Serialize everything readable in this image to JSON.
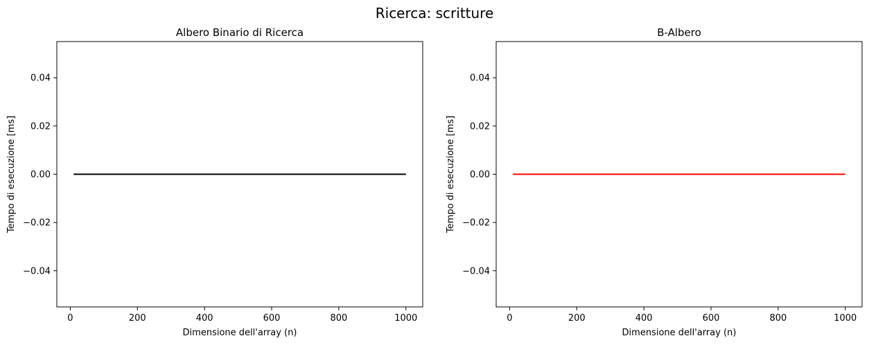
{
  "figure": {
    "suptitle": "Ricerca: scritture"
  },
  "chart_data": [
    {
      "type": "line",
      "title": "Albero Binario di Ricerca",
      "xlabel": "Dimensione dell'array (n)",
      "ylabel": "Tempo di esecuzione [ms]",
      "xlim": [
        -40,
        1050
      ],
      "ylim": [
        -0.055,
        0.055
      ],
      "xticks": [
        0,
        200,
        400,
        600,
        800,
        1000
      ],
      "xtick_labels": [
        "0",
        "200",
        "400",
        "600",
        "800",
        "1000"
      ],
      "yticks": [
        -0.04,
        -0.02,
        0.0,
        0.02,
        0.04
      ],
      "ytick_labels": [
        "−0.04",
        "−0.02",
        "0.00",
        "0.02",
        "0.04"
      ],
      "grid": false,
      "series": [
        {
          "color": "#000000",
          "x": [
            10,
            1000
          ],
          "y": [
            0.0,
            0.0
          ]
        }
      ]
    },
    {
      "type": "line",
      "title": "B-Albero",
      "xlabel": "Dimensione dell'array (n)",
      "ylabel": "Tempo di esecuzione [ms]",
      "xlim": [
        -40,
        1050
      ],
      "ylim": [
        -0.055,
        0.055
      ],
      "xticks": [
        0,
        200,
        400,
        600,
        800,
        1000
      ],
      "xtick_labels": [
        "0",
        "200",
        "400",
        "600",
        "800",
        "1000"
      ],
      "yticks": [
        -0.04,
        -0.02,
        0.0,
        0.02,
        0.04
      ],
      "ytick_labels": [
        "−0.04",
        "−0.02",
        "0.00",
        "0.02",
        "0.04"
      ],
      "grid": false,
      "series": [
        {
          "color": "#ff0000",
          "x": [
            10,
            1000
          ],
          "y": [
            0.0,
            0.0
          ]
        }
      ]
    }
  ]
}
